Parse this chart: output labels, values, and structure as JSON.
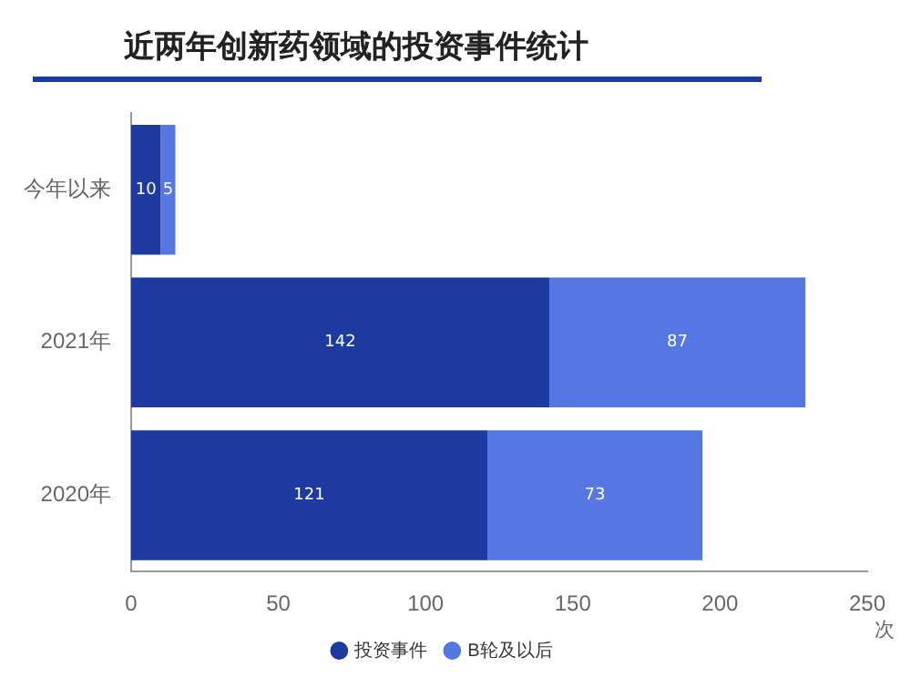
{
  "chart_data": {
    "type": "bar",
    "title": "近两年创新药领域的投资事件统计",
    "orientation": "horizontal",
    "stacked": true,
    "categories": [
      "今年以来",
      "2021年",
      "2020年"
    ],
    "series": [
      {
        "name": "投资事件",
        "color": "#1c3aa0",
        "values": [
          10,
          142,
          121
        ]
      },
      {
        "name": "B轮及以后",
        "color": "#5577e3",
        "values": [
          5,
          87,
          73
        ]
      }
    ],
    "xlabel": "次",
    "xlim": [
      0,
      250
    ],
    "xticks": [
      0,
      50,
      100,
      150,
      200,
      250
    ],
    "data_labels": true,
    "grid": false,
    "legend": "bottom"
  }
}
